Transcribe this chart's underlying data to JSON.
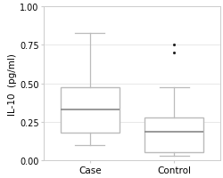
{
  "title": "",
  "ylabel": "IL-10  (pg/ml)",
  "xlabel": "",
  "ylim": [
    0.0,
    1.0
  ],
  "yticks": [
    0.0,
    0.25,
    0.5,
    0.75,
    1.0
  ],
  "categories": [
    "Case",
    "Control"
  ],
  "case": {
    "med": 0.33,
    "q1": 0.18,
    "q3": 0.475,
    "whislo": 0.1,
    "whishi": 0.83,
    "fliers": []
  },
  "control": {
    "med": 0.185,
    "q1": 0.055,
    "q3": 0.28,
    "whislo": 0.03,
    "whishi": 0.475,
    "fliers": [
      0.7,
      0.75
    ]
  },
  "box_color": "#bbbbbb",
  "median_color": "#888888",
  "whisker_color": "#bbbbbb",
  "cap_color": "#bbbbbb",
  "flier_color": "#222222",
  "grid_color": "#e8e8e8",
  "background_color": "#ffffff",
  "box_width": 0.7,
  "ylabel_fontsize": 7.5,
  "tick_fontsize": 7,
  "cat_fontsize": 7.5
}
